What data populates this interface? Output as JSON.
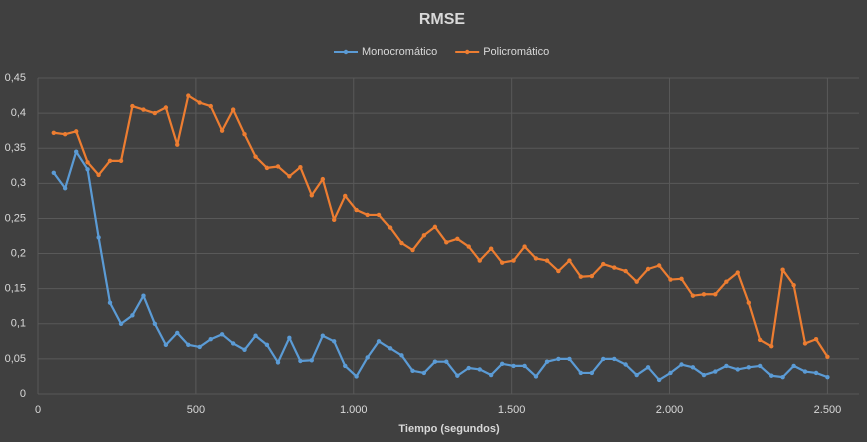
{
  "chart_data": {
    "type": "line",
    "title": "RMSE",
    "xlabel": "Tiempo (segundos)",
    "x": [
      50,
      86,
      121,
      157,
      192,
      228,
      263,
      299,
      334,
      370,
      405,
      441,
      476,
      512,
      547,
      583,
      618,
      654,
      689,
      725,
      760,
      796,
      831,
      867,
      902,
      938,
      973,
      1009,
      1044,
      1080,
      1115,
      1151,
      1186,
      1222,
      1257,
      1293,
      1328,
      1364,
      1399,
      1435,
      1470,
      1506,
      1541,
      1577,
      1612,
      1648,
      1683,
      1719,
      1754,
      1790,
      1825,
      1861,
      1896,
      1932,
      1967,
      2003,
      2038,
      2074,
      2109,
      2145,
      2180,
      2216,
      2251,
      2287,
      2322,
      2358,
      2393,
      2429,
      2464,
      2500
    ],
    "series": [
      {
        "name": "Monocromático",
        "color": "#5b9bd5",
        "values": [
          0.315,
          0.293,
          0.345,
          0.32,
          0.223,
          0.13,
          0.1,
          0.112,
          0.14,
          0.1,
          0.07,
          0.087,
          0.07,
          0.067,
          0.078,
          0.085,
          0.072,
          0.063,
          0.083,
          0.07,
          0.045,
          0.08,
          0.047,
          0.048,
          0.083,
          0.075,
          0.04,
          0.025,
          0.052,
          0.075,
          0.065,
          0.055,
          0.033,
          0.03,
          0.046,
          0.046,
          0.026,
          0.037,
          0.035,
          0.027,
          0.043,
          0.04,
          0.04,
          0.025,
          0.046,
          0.05,
          0.05,
          0.03,
          0.03,
          0.05,
          0.05,
          0.042,
          0.027,
          0.038,
          0.02,
          0.03,
          0.042,
          0.038,
          0.027,
          0.032,
          0.04,
          0.035,
          0.038,
          0.04,
          0.026,
          0.024,
          0.04,
          0.032,
          0.03,
          0.024
        ]
      },
      {
        "name": "Policromático",
        "color": "#ed7d31",
        "values": [
          0.372,
          0.37,
          0.374,
          0.33,
          0.312,
          0.332,
          0.332,
          0.41,
          0.405,
          0.4,
          0.408,
          0.355,
          0.425,
          0.415,
          0.41,
          0.375,
          0.405,
          0.37,
          0.338,
          0.322,
          0.324,
          0.31,
          0.323,
          0.283,
          0.306,
          0.248,
          0.282,
          0.262,
          0.255,
          0.255,
          0.237,
          0.215,
          0.205,
          0.226,
          0.238,
          0.216,
          0.221,
          0.21,
          0.19,
          0.207,
          0.187,
          0.19,
          0.21,
          0.193,
          0.19,
          0.175,
          0.19,
          0.167,
          0.168,
          0.185,
          0.18,
          0.175,
          0.16,
          0.178,
          0.183,
          0.163,
          0.164,
          0.14,
          0.142,
          0.142,
          0.16,
          0.173,
          0.13,
          0.077,
          0.068,
          0.177,
          0.155,
          0.072,
          0.078,
          0.053
        ]
      }
    ],
    "xlim": [
      0,
      2600
    ],
    "xticks": [
      0,
      500,
      {
        "value": 1000,
        "label": "1.000"
      },
      {
        "value": 1500,
        "label": "1.500"
      },
      {
        "value": 2000,
        "label": "2.000"
      },
      {
        "value": 2500,
        "label": "2.500"
      }
    ],
    "ylim": [
      0,
      0.45
    ],
    "yticks": [
      0,
      {
        "value": 0.05,
        "label": "0,05"
      },
      {
        "value": 0.1,
        "label": "0,1"
      },
      {
        "value": 0.15,
        "label": "0,15"
      },
      {
        "value": 0.2,
        "label": "0,2"
      },
      {
        "value": 0.25,
        "label": "0,25"
      },
      {
        "value": 0.3,
        "label": "0,3"
      },
      {
        "value": 0.35,
        "label": "0,35"
      },
      {
        "value": 0.4,
        "label": "0,4"
      },
      {
        "value": 0.45,
        "label": "0,45"
      }
    ],
    "grid": true,
    "legend": "top"
  }
}
